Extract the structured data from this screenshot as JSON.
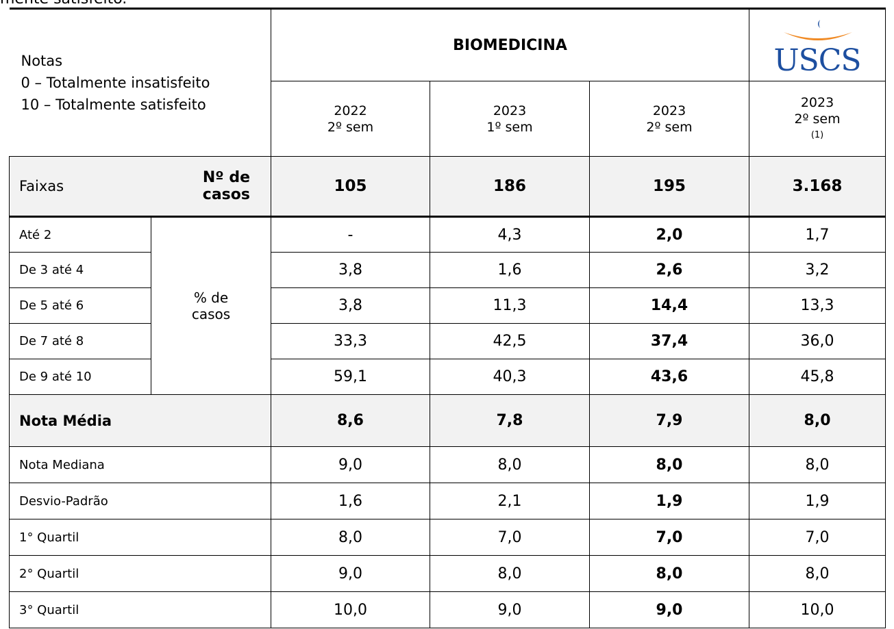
{
  "top_text": "mente satisfeito.",
  "header": {
    "notes": [
      "Notas",
      "0 – Totalmente insatisfeito",
      "10 – Totalmente satisfeito"
    ],
    "course": "BIOMEDICINA",
    "logo": "USCS",
    "periods": [
      {
        "year": "2022",
        "sem": "2º sem"
      },
      {
        "year": "2023",
        "sem": "1º sem"
      },
      {
        "year": "2023",
        "sem": "2º sem"
      },
      {
        "year": "2023",
        "sem": "2º sem",
        "note": "(1)"
      }
    ]
  },
  "cases": {
    "label": "Faixas",
    "sublabel": "Nº de casos",
    "values": [
      "105",
      "186",
      "195",
      "3.168"
    ]
  },
  "bands": {
    "group_label": "% de casos",
    "rows": [
      {
        "label": "Até 2",
        "values": [
          "-",
          "4,3",
          "2,0",
          "1,7"
        ]
      },
      {
        "label": "De 3 até 4",
        "values": [
          "3,8",
          "1,6",
          "2,6",
          "3,2"
        ]
      },
      {
        "label": "De 5 até 6",
        "values": [
          "3,8",
          "11,3",
          "14,4",
          "13,3"
        ]
      },
      {
        "label": "De 7 até 8",
        "values": [
          "33,3",
          "42,5",
          "37,4",
          "36,0"
        ]
      },
      {
        "label": "De 9 até 10",
        "values": [
          "59,1",
          "40,3",
          "43,6",
          "45,8"
        ]
      }
    ]
  },
  "stats": [
    {
      "label": "Nota Média",
      "values": [
        "8,6",
        "7,8",
        "7,9",
        "8,0"
      ]
    },
    {
      "label": "Nota Mediana",
      "values": [
        "9,0",
        "8,0",
        "8,0",
        "8,0"
      ]
    },
    {
      "label": "Desvio-Padrão",
      "values": [
        "1,6",
        "2,1",
        "1,9",
        "1,9"
      ]
    },
    {
      "label": "1° Quartil",
      "values": [
        "8,0",
        "7,0",
        "7,0",
        "7,0"
      ]
    },
    {
      "label": "2° Quartil",
      "values": [
        "9,0",
        "8,0",
        "8,0",
        "8,0"
      ]
    },
    {
      "label": "3° Quartil",
      "values": [
        "10,0",
        "9,0",
        "9,0",
        "10,0"
      ]
    }
  ]
}
